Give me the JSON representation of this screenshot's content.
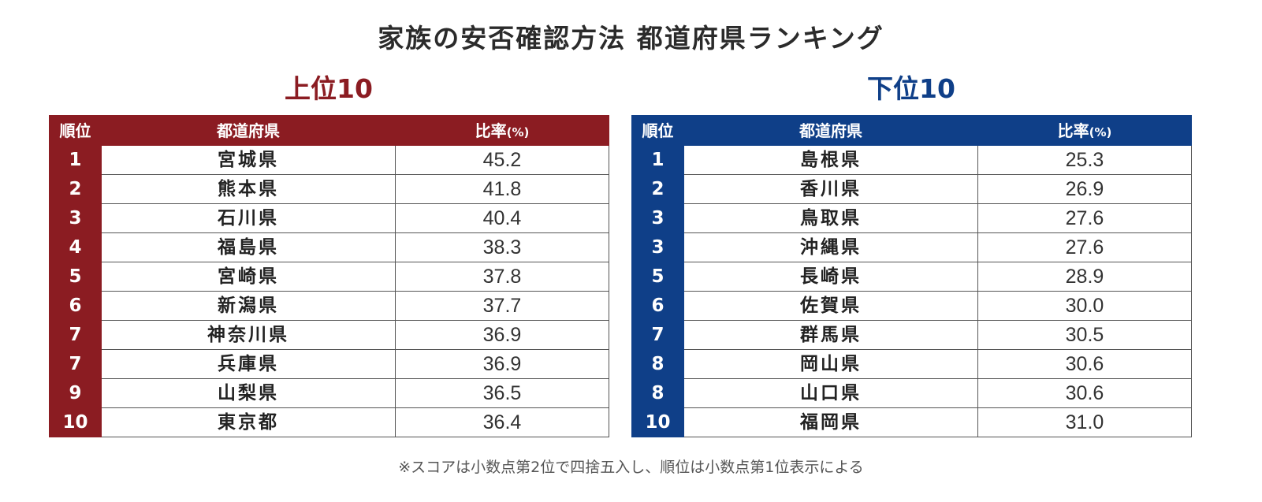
{
  "title": "家族の安否確認方法 都道府県ランキング",
  "top": {
    "heading": "上位10",
    "columns": {
      "rank": "順位",
      "prefecture": "都道府県",
      "ratio": "比率",
      "ratio_unit": "(%)"
    },
    "rows": [
      {
        "rank": "1",
        "prefecture": "宮城県",
        "ratio": "45.2"
      },
      {
        "rank": "2",
        "prefecture": "熊本県",
        "ratio": "41.8"
      },
      {
        "rank": "3",
        "prefecture": "石川県",
        "ratio": "40.4"
      },
      {
        "rank": "4",
        "prefecture": "福島県",
        "ratio": "38.3"
      },
      {
        "rank": "5",
        "prefecture": "宮崎県",
        "ratio": "37.8"
      },
      {
        "rank": "6",
        "prefecture": "新潟県",
        "ratio": "37.7"
      },
      {
        "rank": "7",
        "prefecture": "神奈川県",
        "ratio": "36.9"
      },
      {
        "rank": "7",
        "prefecture": "兵庫県",
        "ratio": "36.9"
      },
      {
        "rank": "9",
        "prefecture": "山梨県",
        "ratio": "36.5"
      },
      {
        "rank": "10",
        "prefecture": "東京都",
        "ratio": "36.4"
      }
    ]
  },
  "bottom": {
    "heading": "下位10",
    "columns": {
      "rank": "順位",
      "prefecture": "都道府県",
      "ratio": "比率",
      "ratio_unit": "(%)"
    },
    "rows": [
      {
        "rank": "1",
        "prefecture": "島根県",
        "ratio": "25.3"
      },
      {
        "rank": "2",
        "prefecture": "香川県",
        "ratio": "26.9"
      },
      {
        "rank": "3",
        "prefecture": "鳥取県",
        "ratio": "27.6"
      },
      {
        "rank": "3",
        "prefecture": "沖縄県",
        "ratio": "27.6"
      },
      {
        "rank": "5",
        "prefecture": "長崎県",
        "ratio": "28.9"
      },
      {
        "rank": "6",
        "prefecture": "佐賀県",
        "ratio": "30.0"
      },
      {
        "rank": "7",
        "prefecture": "群馬県",
        "ratio": "30.5"
      },
      {
        "rank": "8",
        "prefecture": "岡山県",
        "ratio": "30.6"
      },
      {
        "rank": "8",
        "prefecture": "山口県",
        "ratio": "30.6"
      },
      {
        "rank": "10",
        "prefecture": "福岡県",
        "ratio": "31.0"
      }
    ]
  },
  "footnote": "※スコアは小数点第2位で四捨五入し、順位は小数点第1位表示による",
  "colors": {
    "top_accent": "#8b1c22",
    "bottom_accent": "#0f3f88"
  }
}
